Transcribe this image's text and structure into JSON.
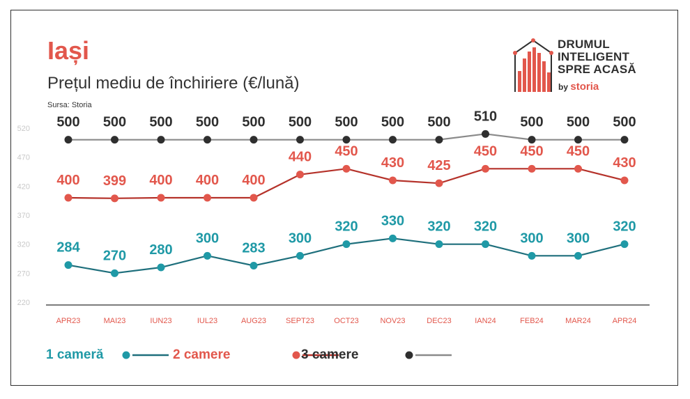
{
  "header": {
    "title": "Iași",
    "subtitle": "Prețul mediu de închiriere (€/lună)",
    "source": "Sursa: Storia"
  },
  "logo": {
    "line1": "DRUMUL",
    "line2": "INTELIGENT",
    "line3": "SPRE ACASĂ",
    "by": "by",
    "brand": "storia"
  },
  "chart_data": {
    "type": "line",
    "categories": [
      "APR23",
      "MAI23",
      "IUN23",
      "IUL23",
      "AUG23",
      "SEPT23",
      "OCT23",
      "NOV23",
      "DEC23",
      "IAN24",
      "FEB24",
      "MAR24",
      "APR24"
    ],
    "yticks": [
      220,
      270,
      320,
      370,
      420,
      470,
      520
    ],
    "ylim": [
      220,
      520
    ],
    "grid": false,
    "legend_position": "bottom-left",
    "series": [
      {
        "name": "1 cameră",
        "color": "#1f99a6",
        "line_color": "#1e6f7c",
        "values": [
          284,
          270,
          280,
          300,
          283,
          300,
          320,
          330,
          320,
          320,
          300,
          300,
          320
        ]
      },
      {
        "name": "2 camere",
        "color": "#e2574c",
        "line_color": "#b5322a",
        "values": [
          400,
          399,
          400,
          400,
          400,
          440,
          450,
          430,
          425,
          450,
          450,
          450,
          430
        ]
      },
      {
        "name": "3 camere",
        "color": "#2f2f2f",
        "line_color": "#8a8a8a",
        "values": [
          500,
          500,
          500,
          500,
          500,
          500,
          500,
          500,
          500,
          510,
          500,
          500,
          500
        ]
      }
    ],
    "plot_positions": {
      "note": "removed"
    }
  },
  "colors": {
    "accent": "#e2574c",
    "axis_text": "#e2574c",
    "tick_text": "#c8c8c8"
  }
}
